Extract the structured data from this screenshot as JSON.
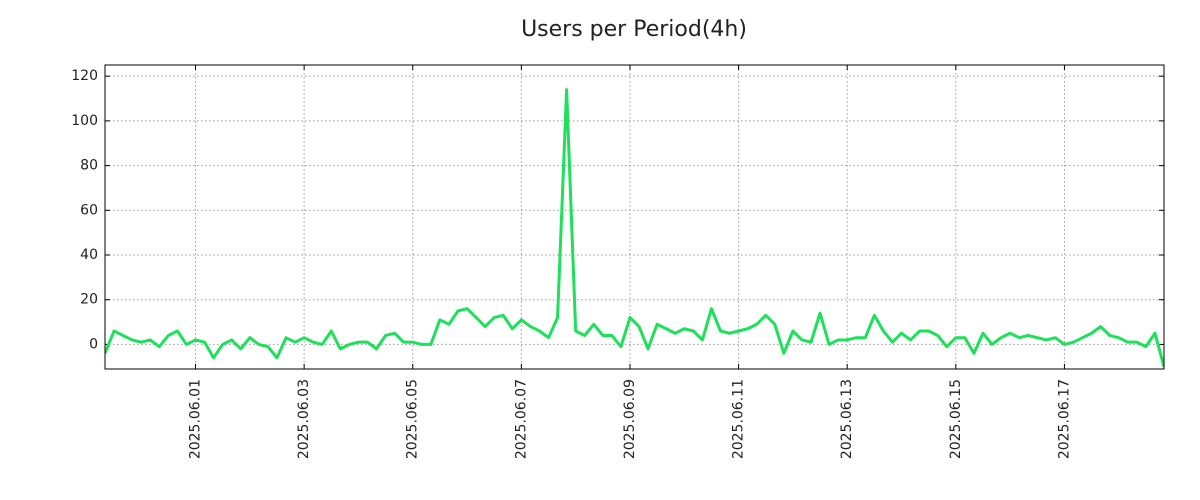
{
  "chart_data": {
    "type": "line",
    "title": "Users per Period(4h)",
    "color": "#1ee05a",
    "grid": true,
    "x": [
      "2025-05-30 08:00",
      "2025-05-30 12:00",
      "2025-05-30 16:00",
      "2025-05-30 20:00",
      "2025-05-31 00:00",
      "2025-05-31 04:00",
      "2025-05-31 08:00",
      "2025-05-31 12:00",
      "2025-05-31 16:00",
      "2025-05-31 20:00",
      "2025-06-01 00:00",
      "2025-06-01 04:00",
      "2025-06-01 08:00",
      "2025-06-01 12:00",
      "2025-06-01 16:00",
      "2025-06-01 20:00",
      "2025-06-02 00:00",
      "2025-06-02 04:00",
      "2025-06-02 08:00",
      "2025-06-02 12:00",
      "2025-06-02 16:00",
      "2025-06-02 20:00",
      "2025-06-03 00:00",
      "2025-06-03 04:00",
      "2025-06-03 08:00",
      "2025-06-03 12:00",
      "2025-06-03 16:00",
      "2025-06-03 20:00",
      "2025-06-04 00:00",
      "2025-06-04 04:00",
      "2025-06-04 08:00",
      "2025-06-04 12:00",
      "2025-06-04 16:00",
      "2025-06-04 20:00",
      "2025-06-05 00:00",
      "2025-06-05 04:00",
      "2025-06-05 08:00",
      "2025-06-05 12:00",
      "2025-06-05 16:00",
      "2025-06-05 20:00",
      "2025-06-06 00:00",
      "2025-06-06 04:00",
      "2025-06-06 08:00",
      "2025-06-06 12:00",
      "2025-06-06 16:00",
      "2025-06-06 20:00",
      "2025-06-07 00:00",
      "2025-06-07 04:00",
      "2025-06-07 08:00",
      "2025-06-07 12:00",
      "2025-06-07 16:00",
      "2025-06-07 20:00",
      "2025-06-08 00:00",
      "2025-06-08 04:00",
      "2025-06-08 08:00",
      "2025-06-08 12:00",
      "2025-06-08 16:00",
      "2025-06-08 20:00",
      "2025-06-09 00:00",
      "2025-06-09 04:00",
      "2025-06-09 08:00",
      "2025-06-09 12:00",
      "2025-06-09 16:00",
      "2025-06-09 20:00",
      "2025-06-10 00:00",
      "2025-06-10 04:00",
      "2025-06-10 08:00",
      "2025-06-10 12:00",
      "2025-06-10 16:00",
      "2025-06-10 20:00",
      "2025-06-11 00:00",
      "2025-06-11 04:00",
      "2025-06-11 08:00",
      "2025-06-11 12:00",
      "2025-06-11 16:00",
      "2025-06-11 20:00",
      "2025-06-12 00:00",
      "2025-06-12 04:00",
      "2025-06-12 08:00",
      "2025-06-12 12:00",
      "2025-06-12 16:00",
      "2025-06-12 20:00",
      "2025-06-13 00:00",
      "2025-06-13 04:00",
      "2025-06-13 08:00",
      "2025-06-13 12:00",
      "2025-06-13 16:00",
      "2025-06-13 20:00",
      "2025-06-14 00:00",
      "2025-06-14 04:00",
      "2025-06-14 08:00",
      "2025-06-14 12:00",
      "2025-06-14 16:00",
      "2025-06-14 20:00",
      "2025-06-15 00:00",
      "2025-06-15 04:00",
      "2025-06-15 08:00",
      "2025-06-15 12:00",
      "2025-06-15 16:00",
      "2025-06-15 20:00",
      "2025-06-16 00:00",
      "2025-06-16 04:00",
      "2025-06-16 08:00",
      "2025-06-16 12:00",
      "2025-06-16 16:00",
      "2025-06-16 20:00",
      "2025-06-17 00:00",
      "2025-06-17 04:00",
      "2025-06-17 08:00",
      "2025-06-17 12:00",
      "2025-06-17 16:00",
      "2025-06-17 20:00",
      "2025-06-18 00:00",
      "2025-06-18 04:00",
      "2025-06-18 08:00",
      "2025-06-18 12:00",
      "2025-06-18 16:00",
      "2025-06-18 20:00"
    ],
    "values": [
      -4,
      6,
      4,
      2,
      1,
      2,
      -1,
      4,
      6,
      0,
      2,
      1,
      -6,
      0,
      2,
      -2,
      3,
      0,
      -1,
      -6,
      3,
      1,
      3,
      1,
      0,
      6,
      -2,
      0,
      1,
      1,
      -2,
      4,
      5,
      1,
      1,
      0,
      0,
      11,
      9,
      15,
      16,
      12,
      8,
      12,
      13,
      7,
      11,
      8,
      6,
      3,
      12,
      114,
      6,
      4,
      9,
      4,
      4,
      -1,
      12,
      8,
      -2,
      9,
      7,
      5,
      7,
      6,
      2,
      16,
      6,
      5,
      6,
      7,
      9,
      13,
      9,
      -4,
      6,
      2,
      1,
      14,
      0,
      2,
      2,
      3,
      3,
      13,
      6,
      1,
      5,
      2,
      6,
      6,
      4,
      -1,
      3,
      3,
      -4,
      5,
      0,
      3,
      5,
      3,
      4,
      3,
      2,
      3,
      0,
      1,
      3,
      5,
      8,
      4,
      3,
      1,
      1,
      -1,
      5,
      -10
    ],
    "xlim": [
      "2025-05-30 08:00",
      "2025-06-18 20:00"
    ],
    "xticks": [
      {
        "value": "2025-06-01 00:00",
        "label": "2025.06.01"
      },
      {
        "value": "2025-06-03 00:00",
        "label": "2025.06.03"
      },
      {
        "value": "2025-06-05 00:00",
        "label": "2025.06.05"
      },
      {
        "value": "2025-06-07 00:00",
        "label": "2025.06.07"
      },
      {
        "value": "2025-06-09 00:00",
        "label": "2025.06.09"
      },
      {
        "value": "2025-06-11 00:00",
        "label": "2025.06.11"
      },
      {
        "value": "2025-06-13 00:00",
        "label": "2025.06.13"
      },
      {
        "value": "2025-06-15 00:00",
        "label": "2025.06.15"
      },
      {
        "value": "2025-06-17 00:00",
        "label": "2025.06.17"
      }
    ],
    "ylim": [
      -11,
      125
    ],
    "yticks": [
      0,
      20,
      40,
      60,
      80,
      100,
      120
    ]
  }
}
